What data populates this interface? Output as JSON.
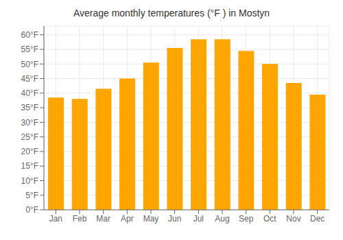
{
  "chart_data": {
    "type": "bar",
    "title": "Average monthly temperatures (°F ) in Mostyn",
    "categories": [
      "Jan",
      "Feb",
      "Mar",
      "Apr",
      "May",
      "Jun",
      "Jul",
      "Aug",
      "Sep",
      "Oct",
      "Nov",
      "Dec"
    ],
    "values": [
      38.5,
      38.0,
      41.5,
      45.0,
      50.5,
      55.5,
      58.5,
      58.5,
      54.5,
      50.0,
      43.5,
      39.5
    ],
    "color": "#FFA500",
    "ylim": [
      0,
      63
    ],
    "yticks": [
      {
        "value": 0,
        "label": "0°F"
      },
      {
        "value": 5,
        "label": "5°F"
      },
      {
        "value": 10,
        "label": "10°F"
      },
      {
        "value": 15,
        "label": "15°F"
      },
      {
        "value": 20,
        "label": "20°F"
      },
      {
        "value": 25,
        "label": "25°F"
      },
      {
        "value": 30,
        "label": "30°F"
      },
      {
        "value": 35,
        "label": "35°F"
      },
      {
        "value": 40,
        "label": "40°F"
      },
      {
        "value": 45,
        "label": "45°F"
      },
      {
        "value": 50,
        "label": "50°F"
      },
      {
        "value": 55,
        "label": "55°F"
      },
      {
        "value": 60,
        "label": "60°F"
      }
    ],
    "grid": true
  }
}
